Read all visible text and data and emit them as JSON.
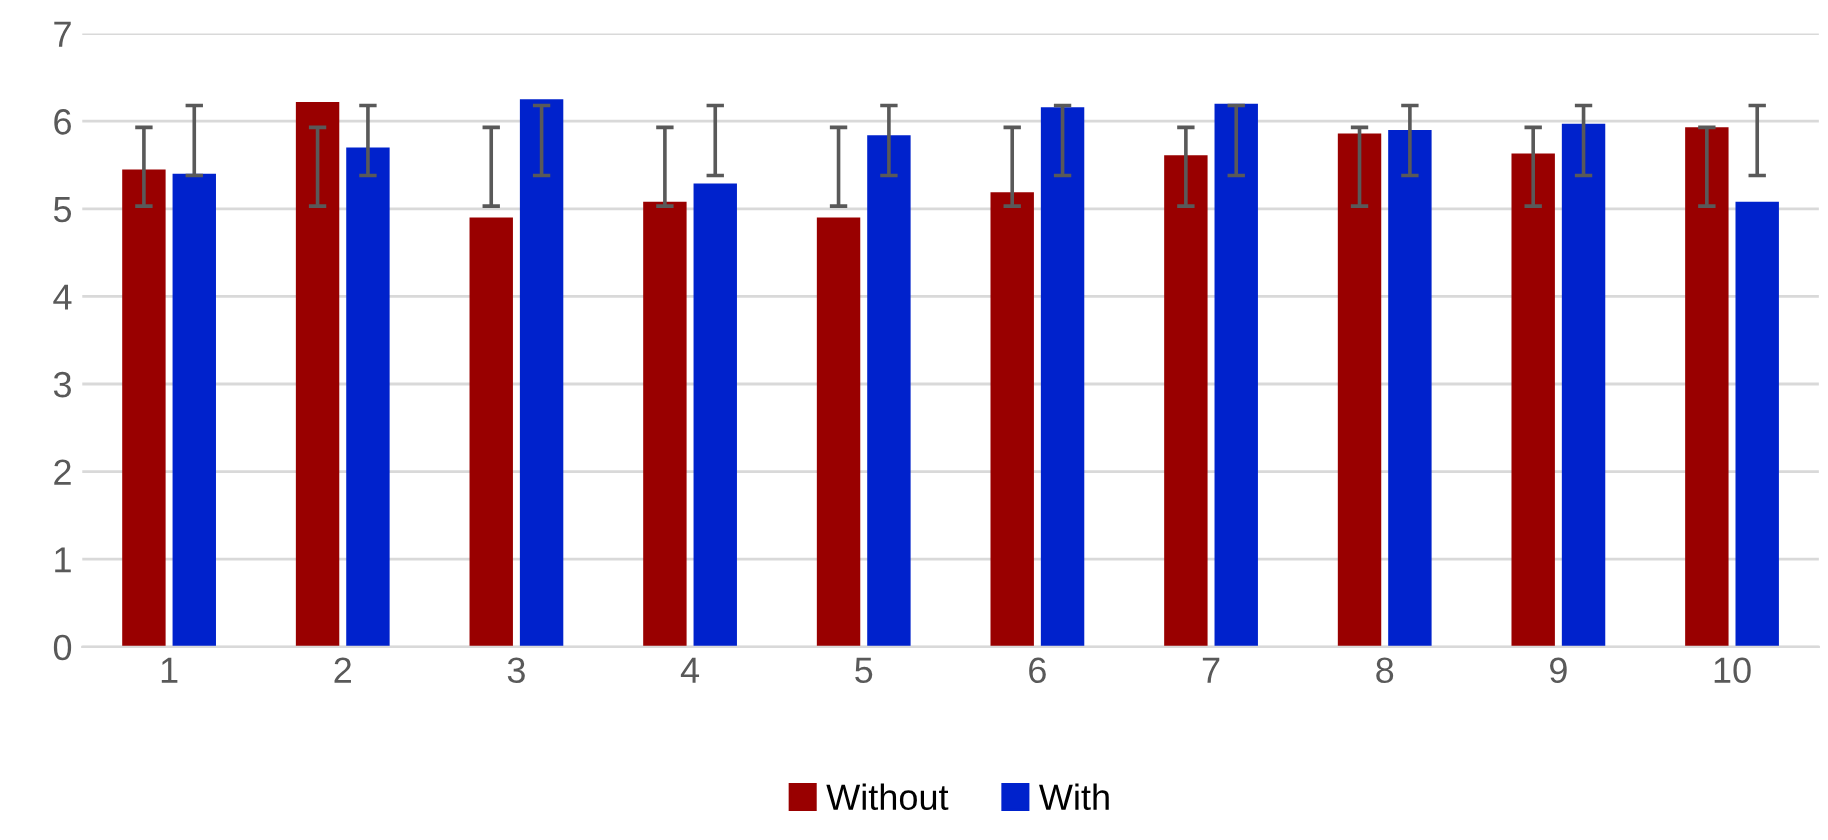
{
  "chart_data": {
    "type": "bar",
    "categories": [
      "1",
      "2",
      "3",
      "4",
      "5",
      "6",
      "7",
      "8",
      "9",
      "10"
    ],
    "series": [
      {
        "name": "Without",
        "color": "#990000",
        "values": [
          5.45,
          6.22,
          4.9,
          5.08,
          4.9,
          5.19,
          5.61,
          5.86,
          5.63,
          5.93
        ],
        "errors": [
          [
            5.03,
            5.93
          ],
          [
            5.03,
            5.93
          ],
          [
            5.03,
            5.93
          ],
          [
            5.03,
            5.93
          ],
          [
            5.03,
            5.93
          ],
          [
            5.03,
            5.93
          ],
          [
            5.03,
            5.93
          ],
          [
            5.03,
            5.93
          ],
          [
            5.03,
            5.93
          ],
          [
            5.03,
            5.93
          ]
        ]
      },
      {
        "name": "With",
        "color": "#0022cc",
        "values": [
          5.4,
          5.7,
          6.25,
          5.29,
          5.84,
          6.16,
          6.2,
          5.9,
          5.97,
          5.08
        ],
        "errors": [
          [
            5.38,
            6.18
          ],
          [
            5.38,
            6.18
          ],
          [
            5.38,
            6.18
          ],
          [
            5.38,
            6.18
          ],
          [
            5.38,
            6.18
          ],
          [
            5.38,
            6.18
          ],
          [
            5.38,
            6.18
          ],
          [
            5.38,
            6.18
          ],
          [
            5.38,
            6.18
          ],
          [
            5.38,
            6.18
          ]
        ]
      }
    ],
    "ylim": [
      0,
      7
    ],
    "yticks": [
      0,
      1,
      2,
      3,
      4,
      5,
      6,
      7
    ],
    "grid": "y",
    "legend": "bottom"
  }
}
